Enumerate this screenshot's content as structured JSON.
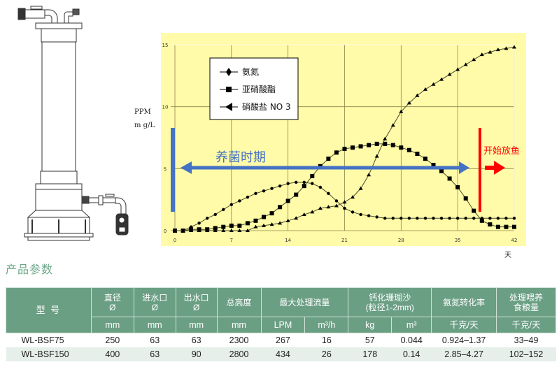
{
  "chart_data": {
    "type": "line",
    "title": "",
    "xlabel": "天",
    "ylabel": "PPM mg/L",
    "ylabel_lines": [
      "PPM",
      "m g/L"
    ],
    "xlim": [
      0,
      42
    ],
    "ylim": [
      0,
      15
    ],
    "x_ticks": [
      "0",
      "7",
      "14",
      "21",
      "28",
      "35",
      "42"
    ],
    "y_ticks": [
      "0",
      "5",
      "10",
      "15"
    ],
    "grid": true,
    "background": "#fffba8",
    "legend_position": "upper-left",
    "x": [
      0,
      1,
      2,
      3,
      4,
      5,
      6,
      7,
      8,
      9,
      10,
      11,
      12,
      13,
      14,
      15,
      16,
      17,
      18,
      19,
      20,
      21,
      22,
      23,
      24,
      25,
      26,
      27,
      28,
      29,
      30,
      31,
      32,
      33,
      34,
      35,
      36,
      37,
      38,
      39,
      40,
      41,
      42
    ],
    "series": [
      {
        "name": "氨氮",
        "marker": "diamond",
        "values": [
          0,
          0,
          0.3,
          0.6,
          1.0,
          1.3,
          1.7,
          2.1,
          2.4,
          2.7,
          3.0,
          3.2,
          3.4,
          3.6,
          3.8,
          3.9,
          3.9,
          3.8,
          3.5,
          3.0,
          2.4,
          1.8,
          1.5,
          1.3,
          1.2,
          1.1,
          1.0,
          1.0,
          1.0,
          1.0,
          1.0,
          1.0,
          1.0,
          1.0,
          1.0,
          1.0,
          1.0,
          1.0,
          1.0,
          1.0,
          1.0,
          1.0,
          1.0
        ]
      },
      {
        "name": "亚硝酸酯",
        "marker": "square",
        "values": [
          0,
          0,
          0.1,
          0.1,
          0.1,
          0.2,
          0.3,
          0.4,
          0.4,
          0.6,
          0.8,
          1.1,
          1.4,
          1.9,
          2.4,
          2.9,
          3.6,
          4.4,
          5.2,
          5.8,
          6.3,
          6.6,
          6.7,
          6.8,
          6.9,
          7.0,
          7.0,
          6.9,
          6.7,
          6.5,
          6.2,
          5.8,
          5.3,
          4.8,
          4.2,
          3.5,
          2.6,
          1.6,
          0.8,
          0.5,
          0.3,
          0.3,
          0.3
        ]
      },
      {
        "name": "硝酸盐 NO 3",
        "marker": "triangle",
        "values": [
          0,
          0,
          0,
          0,
          0,
          0,
          0,
          0,
          0,
          0,
          0.3,
          0.4,
          0.5,
          0.6,
          0.8,
          1.0,
          1.3,
          1.5,
          1.8,
          1.9,
          2.0,
          2.3,
          2.7,
          3.4,
          4.5,
          6.0,
          7.4,
          8.5,
          9.6,
          10.3,
          10.9,
          11.4,
          11.8,
          12.2,
          12.6,
          13.0,
          13.4,
          13.8,
          14.2,
          14.4,
          14.6,
          14.7,
          14.8
        ]
      }
    ],
    "annotations": [
      {
        "text": "养菌时期",
        "color": "#4472c4",
        "type": "arrow-left",
        "x_range": [
          0,
          37
        ],
        "y": 5
      },
      {
        "text": "开始放鱼",
        "color": "#ff0000",
        "type": "arrow-right",
        "x_start": 38,
        "y": 5
      }
    ]
  },
  "device": {
    "name": "bio-filter-column"
  },
  "section": {
    "title": "产品参数"
  },
  "table": {
    "header_row1": [
      {
        "label": "型 号"
      },
      {
        "label": "直径\nØ"
      },
      {
        "label": "进水口\nØ"
      },
      {
        "label": "出水口\nØ"
      },
      {
        "label": "总高度"
      },
      {
        "label": "最大处理流量"
      },
      {
        "label": "钙化珊瑚沙\n(粒径1-2mm)"
      },
      {
        "label": "氨氮转化率"
      },
      {
        "label": "处理喂养\n食粮量"
      }
    ],
    "header_row2": [
      "mm",
      "mm",
      "mm",
      "mm",
      "LPM",
      "m³/h",
      "kg",
      "m³",
      "千克/天",
      "千克/天"
    ],
    "rows": [
      [
        "WL-BSF75",
        "250",
        "63",
        "63",
        "2300",
        "267",
        "16",
        "57",
        "0.044",
        "0.924–1.37",
        "33–49"
      ],
      [
        "WL-BSF150",
        "400",
        "63",
        "90",
        "2800",
        "434",
        "26",
        "178",
        "0.14",
        "2.85–4.27",
        "102–152"
      ]
    ]
  },
  "colors": {
    "header_bg": "#6b9f84",
    "alt_row": "#e6efea",
    "title": "#6aa687",
    "blue": "#4472c4",
    "red": "#ff0000"
  }
}
